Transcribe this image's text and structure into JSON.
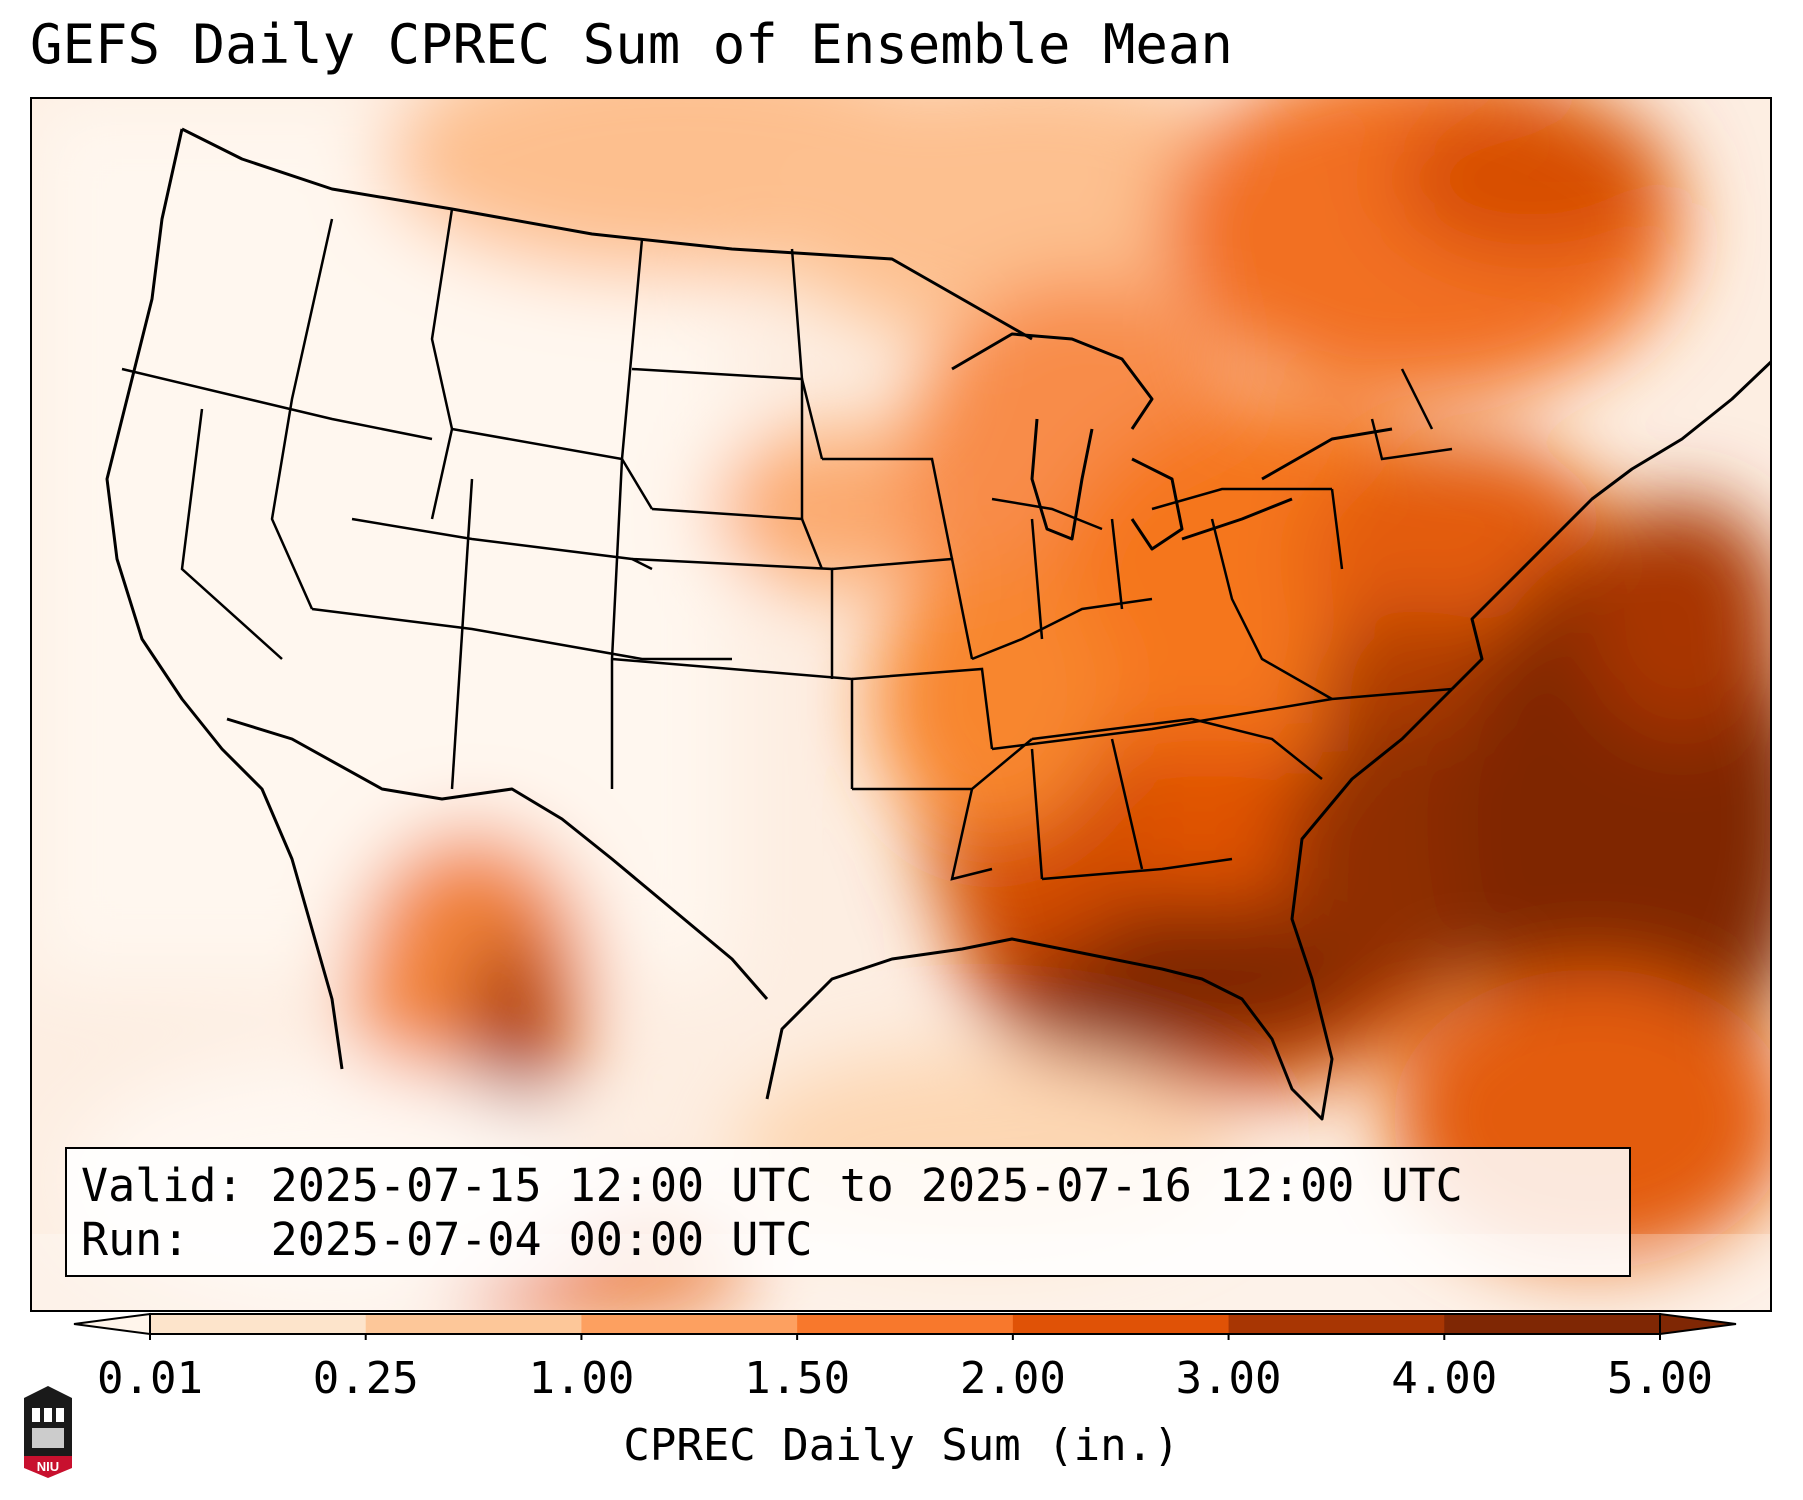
{
  "title": "GEFS Daily CPREC Sum of Ensemble Mean",
  "info": {
    "valid_label": "Valid:",
    "valid_value": "2025-07-15 12:00 UTC to 2025-07-16 12:00 UTC",
    "run_label": "Run:",
    "run_value": "2025-07-04 00:00 UTC"
  },
  "colorbar": {
    "label": "CPREC Daily Sum (in.)",
    "ticks": [
      "0.01",
      "0.25",
      "1.00",
      "1.50",
      "2.00",
      "3.00",
      "4.00",
      "5.00"
    ],
    "colors": [
      "#fff5eb",
      "#fde4cb",
      "#fdc799",
      "#fda060",
      "#f8782c",
      "#e05206",
      "#a83603",
      "#7f2704"
    ],
    "extend": "both"
  },
  "logo": {
    "text": "NIU",
    "color": "#c8102e"
  }
}
